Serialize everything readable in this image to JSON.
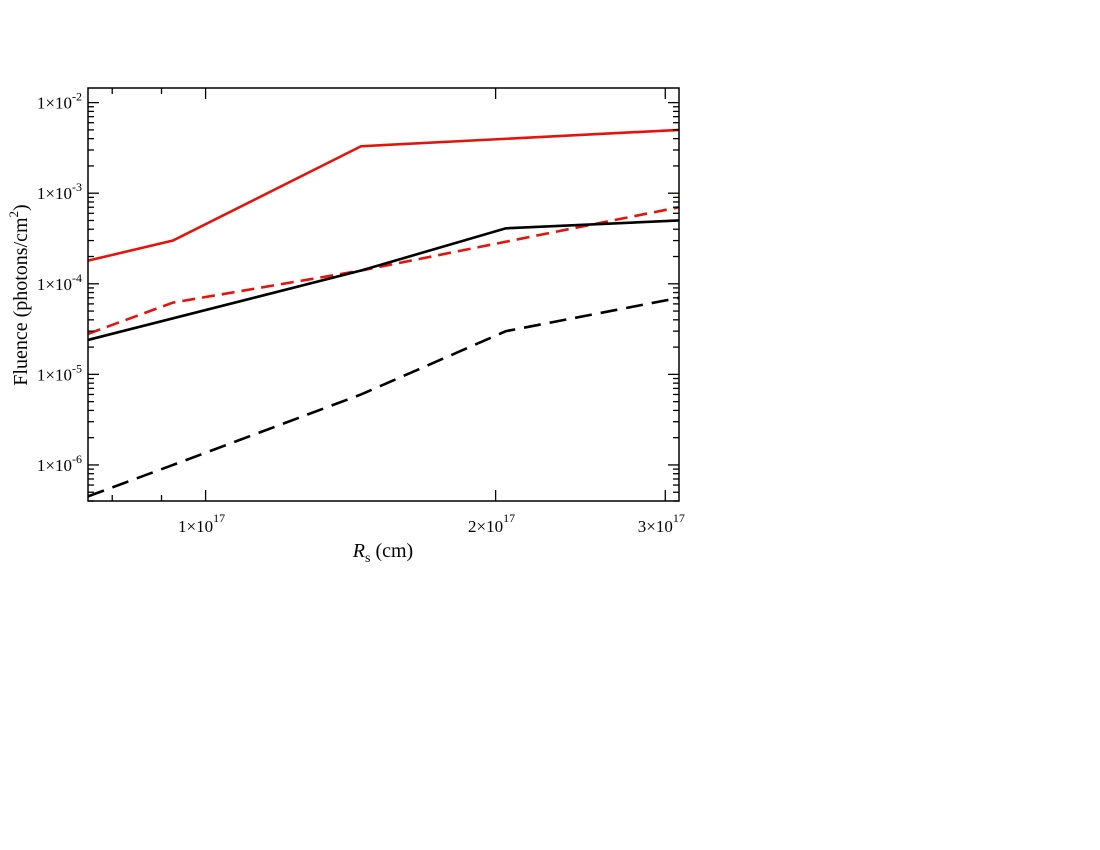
{
  "chart_data": {
    "type": "line",
    "xlabel": {
      "symbol": "R",
      "sub": "s",
      "unit": "(cm)"
    },
    "ylabel": {
      "main": "Fluence (photons/cm",
      "sup": "2",
      "close": ")"
    },
    "x_scale": "log",
    "y_scale": "log",
    "xlim": [
      7.55e+16,
      3.1e+17
    ],
    "ylim": [
      4e-07,
      0.0145
    ],
    "x_ticks": [
      {
        "value": 1e+17,
        "mantissa": "1",
        "exp": "17"
      },
      {
        "value": 2e+17,
        "mantissa": "2",
        "exp": "17"
      },
      {
        "value": 3e+17,
        "mantissa": "3",
        "exp": "17"
      }
    ],
    "y_ticks": [
      {
        "value": 1e-06,
        "exp": "-6"
      },
      {
        "value": 1e-05,
        "exp": "-5"
      },
      {
        "value": 0.0001,
        "exp": "-4"
      },
      {
        "value": 0.001,
        "exp": "-3"
      },
      {
        "value": 0.01,
        "exp": "-2"
      }
    ],
    "grid": false,
    "legend": "none",
    "series": [
      {
        "color": "#e8120c",
        "dash": "solid",
        "x": [
          7.55e+16,
          9.25e+16,
          1.45e+17,
          3.1e+17
        ],
        "y": [
          0.00018,
          0.0003,
          0.0033,
          0.005
        ]
      },
      {
        "color": "#e8120c",
        "dash": "dashed",
        "x": [
          7.55e+16,
          9.25e+16,
          1.45e+17,
          3.1e+17
        ],
        "y": [
          2.8e-05,
          6.2e-05,
          0.00014,
          0.0007
        ]
      },
      {
        "color": "#000000",
        "dash": "solid",
        "x": [
          7.55e+16,
          1.45e+17,
          2.05e+17,
          3.1e+17
        ],
        "y": [
          2.4e-05,
          0.00014,
          0.00041,
          0.0005
        ]
      },
      {
        "color": "#000000",
        "dash": "dashed",
        "x": [
          7.55e+16,
          9.25e+16,
          1.45e+17,
          2.05e+17,
          3.1e+17
        ],
        "y": [
          4.5e-07,
          1e-06,
          6e-06,
          3e-05,
          7e-05
        ]
      }
    ]
  }
}
